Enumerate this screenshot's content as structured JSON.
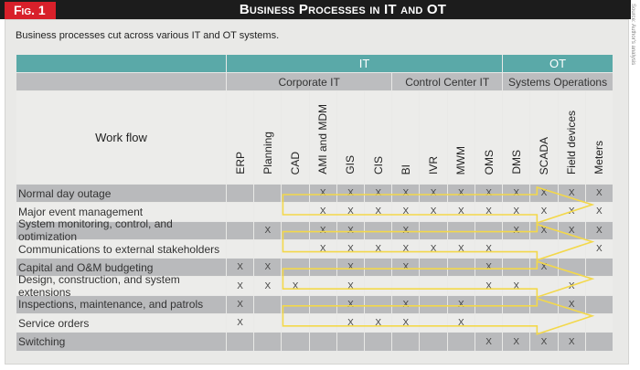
{
  "header": {
    "fig_label": "Fig. 1",
    "title": "Business Processes in IT and OT",
    "source": "Source: Author's analysis"
  },
  "caption": "Business processes cut across various IT and OT systems.",
  "groups": [
    {
      "label": "IT",
      "span": 10
    },
    {
      "label": "OT",
      "span": 4
    }
  ],
  "subgroups": [
    {
      "label": "Corporate IT",
      "span": 6
    },
    {
      "label": "Control Center IT",
      "span": 4
    },
    {
      "label": "Systems Operations",
      "span": 4
    }
  ],
  "row_header": "Work flow",
  "columns": [
    "ERP",
    "Planning",
    "CAD",
    "AMI and MDM",
    "GIS",
    "CIS",
    "BI",
    "IVR",
    "MWM",
    "OMS",
    "DMS",
    "SCADA",
    "Field devices",
    "Meters"
  ],
  "mark": "X",
  "rows": [
    {
      "label": "Normal day outage",
      "marks": [
        0,
        0,
        0,
        1,
        1,
        1,
        1,
        1,
        1,
        1,
        1,
        1,
        1,
        1
      ]
    },
    {
      "label": "Major event management",
      "marks": [
        0,
        0,
        0,
        1,
        1,
        1,
        1,
        1,
        1,
        1,
        1,
        1,
        1,
        1
      ]
    },
    {
      "label": "System monitoring, control, and optimization",
      "marks": [
        0,
        1,
        0,
        1,
        1,
        0,
        1,
        0,
        0,
        0,
        1,
        1,
        1,
        1
      ]
    },
    {
      "label": "Communications to external stakeholders",
      "marks": [
        0,
        0,
        0,
        1,
        1,
        1,
        1,
        1,
        1,
        1,
        0,
        0,
        0,
        1
      ]
    },
    {
      "label": "Capital and O&M budgeting",
      "marks": [
        1,
        1,
        0,
        0,
        1,
        0,
        1,
        0,
        0,
        1,
        0,
        1,
        0,
        0
      ]
    },
    {
      "label": "Design, construction, and system extensions",
      "marks": [
        1,
        1,
        1,
        0,
        1,
        0,
        0,
        0,
        0,
        1,
        1,
        0,
        1,
        0
      ]
    },
    {
      "label": "Inspections, maintenance, and patrols",
      "marks": [
        1,
        0,
        0,
        0,
        1,
        0,
        1,
        0,
        1,
        0,
        0,
        0,
        1,
        0
      ]
    },
    {
      "label": "Service orders",
      "marks": [
        1,
        0,
        0,
        0,
        1,
        1,
        1,
        0,
        1,
        0,
        0,
        0,
        0,
        0
      ]
    },
    {
      "label": "Switching",
      "marks": [
        0,
        0,
        0,
        0,
        0,
        0,
        0,
        0,
        0,
        1,
        1,
        1,
        1,
        0
      ]
    }
  ],
  "arrow_row_pairs": [
    [
      0,
      1
    ],
    [
      2,
      3
    ],
    [
      4,
      5
    ],
    [
      6,
      7
    ]
  ],
  "colors": {
    "teal": "#5aa9a8",
    "arrow": "#f3d84a",
    "red": "#d8202a"
  }
}
